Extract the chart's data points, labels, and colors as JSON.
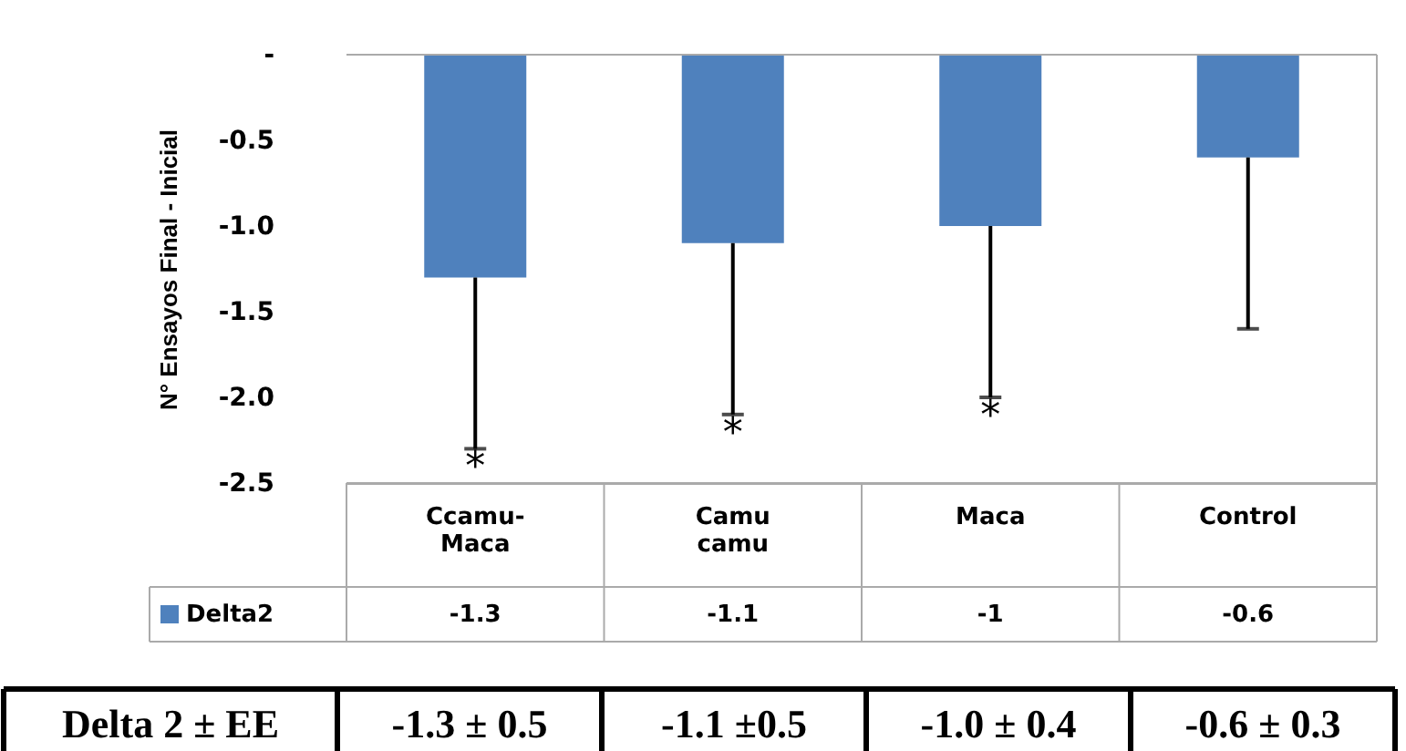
{
  "chart_data": {
    "type": "bar",
    "ylabel": "N° Ensayos Final - Inicial",
    "categories": [
      "Ccamu-Maca",
      "Camu camu",
      "Maca",
      "Control"
    ],
    "series": [
      {
        "name": "Delta2",
        "color": "#4f81bd",
        "values": [
          -1.3,
          -1.1,
          -1,
          -0.6
        ],
        "errors": [
          [
            -2.3,
            -1.3
          ],
          [
            -2.1,
            -1.1
          ],
          [
            -2.0,
            -1.0
          ],
          [
            -1.6,
            -0.6
          ]
        ]
      }
    ],
    "ylim": [
      -2.5,
      0
    ],
    "yticks": [
      {
        "value": 0,
        "label": "-"
      },
      -0.5,
      {
        "value": -1.0,
        "label": "-1.0"
      },
      -1.5,
      {
        "value": -2.0,
        "label": "-2.0"
      },
      -2.5
    ],
    "data_labels": true,
    "grid": false,
    "legend": "bottom",
    "annotations": [
      "*",
      "*",
      "*",
      "Delta 2 ± EE",
      "-1.3 ± 0.5",
      "-1.1 ±0.5",
      "-1.0 ± 0.4",
      "-0.6 ± 0.3"
    ]
  }
}
